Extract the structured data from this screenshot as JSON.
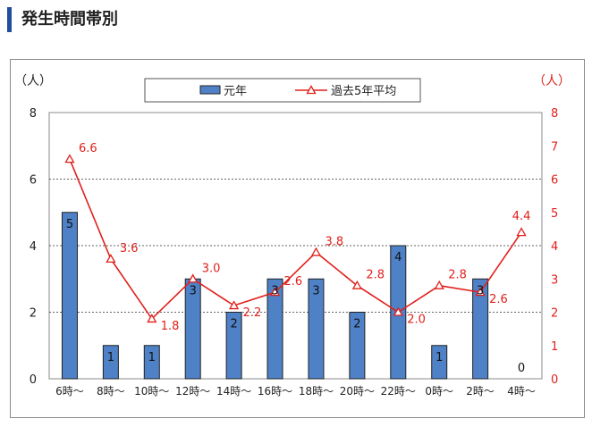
{
  "header": {
    "title": "発生時間帯別"
  },
  "chart_data": {
    "type": "bar+line",
    "categories": [
      "6時～",
      "8時～",
      "10時～",
      "12時～",
      "14時～",
      "16時～",
      "18時～",
      "20時～",
      "22時～",
      "0時～",
      "2時～",
      "4時～"
    ],
    "series": [
      {
        "name": "元年",
        "type": "bar",
        "axis": "left",
        "color": "#4f81c7",
        "values": [
          5,
          1,
          1,
          3,
          2,
          3,
          3,
          2,
          4,
          1,
          3,
          0
        ],
        "labels": [
          "5",
          "1",
          "1",
          "3",
          "2",
          "3",
          "3",
          "2",
          "4",
          "1",
          "3",
          "0"
        ]
      },
      {
        "name": "過去5年平均",
        "type": "line",
        "axis": "right",
        "color": "#e0201b",
        "values": [
          6.6,
          3.6,
          1.8,
          3.0,
          2.2,
          2.6,
          3.8,
          2.8,
          2.0,
          2.8,
          2.6,
          4.4
        ],
        "labels": [
          "6.6",
          "3.6",
          "1.8",
          "3.0",
          "2.2",
          "2.6",
          "3.8",
          "2.8",
          "2.0",
          "2.8",
          "2.6",
          "4.4"
        ]
      }
    ],
    "left_axis": {
      "unit": "（人）",
      "ylim": [
        0,
        8
      ],
      "ticks": [
        "0",
        "2",
        "4",
        "6",
        "8"
      ],
      "color": "#222222"
    },
    "right_axis": {
      "unit": "（人）",
      "ylim": [
        0,
        8
      ],
      "ticks": [
        "0",
        "1",
        "2",
        "3",
        "4",
        "5",
        "6",
        "7",
        "8"
      ],
      "color": "#e0201b"
    },
    "grid": true,
    "legend": "top-center"
  }
}
